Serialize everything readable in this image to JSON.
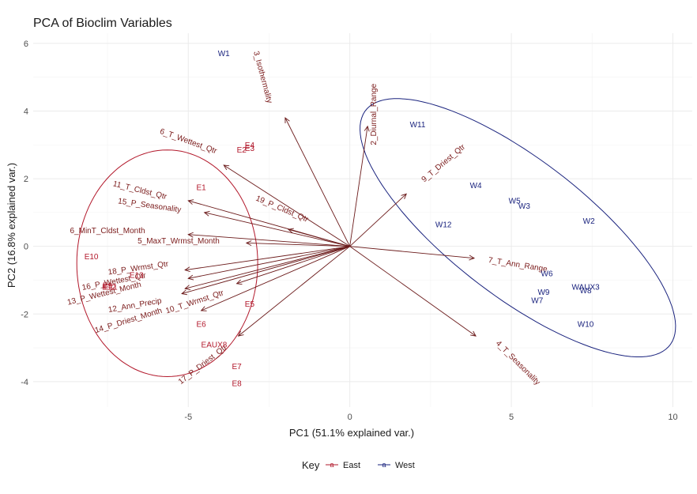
{
  "chart_data": {
    "type": "scatter",
    "subtype": "pca-biplot",
    "title": "PCA of Bioclim Variables",
    "xlabel": "PC1 (51.1% explained var.)",
    "ylabel": "PC2 (16.8% explained var.)",
    "xlim": [
      -9.8,
      10.6
    ],
    "ylim": [
      -4.75,
      6.3
    ],
    "xticks": [
      -5,
      0,
      5,
      10
    ],
    "yticks": [
      -4,
      -2,
      0,
      2,
      4,
      6
    ],
    "grid": true,
    "legend": {
      "title": "Key",
      "position": "bottom",
      "entries": [
        {
          "symbol": "a",
          "label": "East",
          "color": "#b2182b"
        },
        {
          "symbol": "a",
          "label": "West",
          "color": "#1a237e"
        }
      ]
    },
    "series": [
      {
        "name": "East",
        "color": "#b2182b",
        "points": [
          {
            "label": "E1",
            "x": -4.6,
            "y": 1.75
          },
          {
            "label": "E2",
            "x": -3.35,
            "y": 2.85
          },
          {
            "label": "E3",
            "x": -3.1,
            "y": 2.9
          },
          {
            "label": "E4",
            "x": -3.1,
            "y": 3.0
          },
          {
            "label": "E5",
            "x": -3.1,
            "y": -1.7
          },
          {
            "label": "E6",
            "x": -4.6,
            "y": -2.3
          },
          {
            "label": "E7",
            "x": -3.5,
            "y": -3.55
          },
          {
            "label": "E8",
            "x": -3.5,
            "y": -4.05
          },
          {
            "label": "E9",
            "x": -7.5,
            "y": -1.15
          },
          {
            "label": "E10",
            "x": -8.0,
            "y": -0.3
          },
          {
            "label": "E11",
            "x": -7.4,
            "y": -1.2
          },
          {
            "label": "E12",
            "x": -7.45,
            "y": -1.2
          },
          {
            "label": "E13",
            "x": -6.6,
            "y": -0.85
          },
          {
            "label": "EAUX8",
            "x": -4.2,
            "y": -2.9
          }
        ],
        "ellipse": {
          "cx": -5.65,
          "cy": -0.5,
          "rx": 2.8,
          "ry": 3.35,
          "angle": 0
        }
      },
      {
        "name": "West",
        "color": "#1a237e",
        "points": [
          {
            "label": "W1",
            "x": -3.9,
            "y": 5.7
          },
          {
            "label": "W2",
            "x": 7.4,
            "y": 0.75
          },
          {
            "label": "W3",
            "x": 5.4,
            "y": 1.2
          },
          {
            "label": "W4",
            "x": 3.9,
            "y": 1.8
          },
          {
            "label": "W5",
            "x": 5.1,
            "y": 1.35
          },
          {
            "label": "W6",
            "x": 6.1,
            "y": -0.8
          },
          {
            "label": "W7",
            "x": 5.8,
            "y": -1.6
          },
          {
            "label": "W8",
            "x": 7.3,
            "y": -1.3
          },
          {
            "label": "W9",
            "x": 6.0,
            "y": -1.35
          },
          {
            "label": "W10",
            "x": 7.3,
            "y": -2.3
          },
          {
            "label": "W11",
            "x": 2.1,
            "y": 3.6
          },
          {
            "label": "W12",
            "x": 2.9,
            "y": 0.65
          },
          {
            "label": "WAUX3",
            "x": 7.3,
            "y": -1.2
          }
        ],
        "ellipse": {
          "cx": 5.2,
          "cy": 0.55,
          "rx": 5.85,
          "ry": 2.05,
          "angle": -36
        }
      }
    ],
    "loadings": [
      {
        "label": "2_Diurnal_Range",
        "x": 0.55,
        "y": 3.55,
        "lx": 0.75,
        "ly": 3.9,
        "rot": -90
      },
      {
        "label": "3_Isothermality",
        "x": -2.0,
        "y": 3.8,
        "lx": -2.7,
        "ly": 5.0,
        "rot": 75
      },
      {
        "label": "4_T_Seasonality",
        "x": 3.9,
        "y": -2.65,
        "lx": 5.2,
        "ly": -3.45,
        "rot": 45
      },
      {
        "label": "5_MaxT_Wrmst_Month",
        "x": -3.2,
        "y": 0.1,
        "lx": -5.3,
        "ly": 0.15,
        "rot": 0
      },
      {
        "label": "6_MinT_Cldst_Month",
        "x": -5.0,
        "y": 0.35,
        "lx": -7.5,
        "ly": 0.45,
        "rot": 0
      },
      {
        "label": "6_T_Wettest_Qtr",
        "x": -3.9,
        "y": 2.4,
        "lx": -5.0,
        "ly": 3.1,
        "rot": 20
      },
      {
        "label": "7_T_Ann_Range",
        "x": 3.85,
        "y": -0.35,
        "lx": 5.2,
        "ly": -0.55,
        "rot": 9
      },
      {
        "label": "9_T_Driest_Qtr",
        "x": 1.75,
        "y": 1.55,
        "lx": 2.9,
        "ly": 2.45,
        "rot": -40
      },
      {
        "label": "10_T_Wrmst_Qtr",
        "x": -3.5,
        "y": -1.1,
        "lx": -4.8,
        "ly": -1.65,
        "rot": -18
      },
      {
        "label": "11_T_Cldst_Qtr",
        "x": -5.0,
        "y": 1.35,
        "lx": -6.5,
        "ly": 1.65,
        "rot": 14
      },
      {
        "label": "12_Ann_Precip",
        "x": -5.2,
        "y": -1.4,
        "lx": -6.65,
        "ly": -1.75,
        "rot": -10
      },
      {
        "label": "13_P_Wettest_Month",
        "x": -5.1,
        "y": -1.25,
        "lx": -7.6,
        "ly": -1.4,
        "rot": -14
      },
      {
        "label": "14_P_Driest_Month",
        "x": -4.6,
        "y": -1.9,
        "lx": -6.85,
        "ly": -2.2,
        "rot": -17
      },
      {
        "label": "15_P_Seasonality",
        "x": -4.5,
        "y": 1.0,
        "lx": -6.2,
        "ly": 1.2,
        "rot": 8
      },
      {
        "label": "16_P_Wettest_Qtr",
        "x": -5.0,
        "y": -0.95,
        "lx": -7.3,
        "ly": -1.05,
        "rot": -11
      },
      {
        "label": "17_P_Driest_Qtr",
        "x": -3.45,
        "y": -2.65,
        "lx": -4.55,
        "ly": -3.5,
        "rot": -38
      },
      {
        "label": "18_P_Wrmst_Qtr",
        "x": -5.1,
        "y": -0.7,
        "lx": -6.55,
        "ly": -0.65,
        "rot": -8
      },
      {
        "label": "19_P_Cldst_Qtr",
        "x": -1.9,
        "y": 0.5,
        "lx": -2.1,
        "ly": 1.1,
        "rot": 23
      }
    ]
  }
}
